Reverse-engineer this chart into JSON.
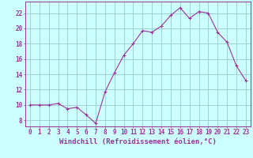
{
  "x": [
    0,
    1,
    2,
    3,
    4,
    5,
    6,
    7,
    8,
    9,
    10,
    11,
    12,
    13,
    14,
    15,
    16,
    17,
    18,
    19,
    20,
    21,
    22,
    23
  ],
  "y": [
    10.0,
    10.0,
    10.0,
    10.2,
    9.5,
    9.7,
    8.7,
    7.6,
    11.7,
    14.2,
    16.5,
    18.0,
    19.7,
    19.5,
    20.3,
    21.7,
    22.7,
    21.3,
    22.2,
    22.0,
    19.5,
    18.2,
    15.1,
    13.2
  ],
  "line_color": "#993399",
  "marker": "+",
  "marker_size": 3,
  "bg_color": "#ccffff",
  "grid_color": "#99cccc",
  "xlabel": "Windchill (Refroidissement éolien,°C)",
  "xlabel_color": "#993399",
  "ylabel_ticks": [
    8,
    10,
    12,
    14,
    16,
    18,
    20,
    22
  ],
  "xtick_labels": [
    "0",
    "1",
    "2",
    "3",
    "4",
    "5",
    "6",
    "7",
    "8",
    "9",
    "10",
    "11",
    "12",
    "13",
    "14",
    "15",
    "16",
    "17",
    "18",
    "19",
    "20",
    "21",
    "22",
    "23"
  ],
  "ylim": [
    7.2,
    23.5
  ],
  "xlim": [
    -0.5,
    23.5
  ],
  "tick_color": "#993399",
  "label_fontsize": 6.5,
  "tick_fontsize": 5.5
}
